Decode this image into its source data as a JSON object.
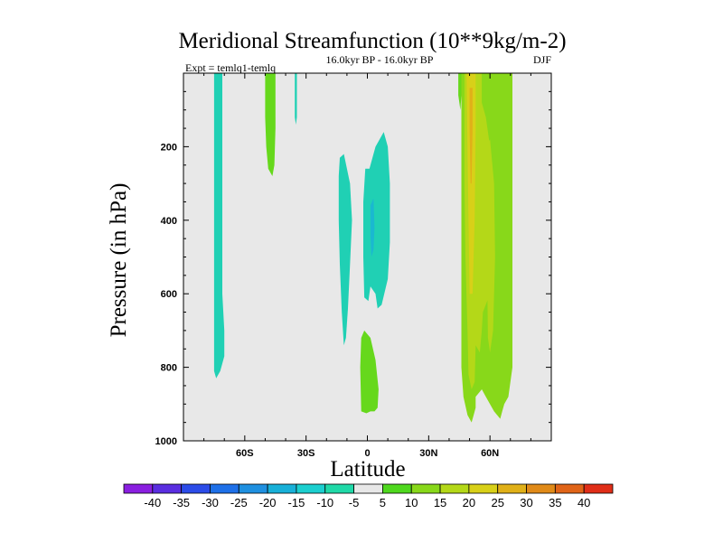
{
  "chart_data": {
    "type": "contour",
    "title": "Meridional Streamfunction (10**9kg/m-2)",
    "subtitle_left": "Expt = temlq1-temlq",
    "subtitle_center": "16.0kyr BP - 16.0kyr BP",
    "subtitle_right": "DJF",
    "xlabel": "Latitude",
    "ylabel": "Pressure (in hPa)",
    "xlim": [
      -90,
      90
    ],
    "ylim": [
      1000,
      0
    ],
    "xticks": [
      {
        "value": -60,
        "label": "60S"
      },
      {
        "value": -30,
        "label": "30S"
      },
      {
        "value": 0,
        "label": "0"
      },
      {
        "value": 30,
        "label": "30N"
      },
      {
        "value": 60,
        "label": "60N"
      }
    ],
    "yticks": [
      {
        "value": 200,
        "label": "200"
      },
      {
        "value": 400,
        "label": "400"
      },
      {
        "value": 600,
        "label": "600"
      },
      {
        "value": 800,
        "label": "800"
      },
      {
        "value": 1000,
        "label": "1000"
      }
    ],
    "background_color": "#e8e8e8",
    "colorbar": {
      "levels": [
        "-40",
        "-35",
        "-30",
        "-25",
        "-20",
        "-15",
        "-10",
        "-5",
        "5",
        "10",
        "15",
        "20",
        "25",
        "30",
        "35",
        "40"
      ],
      "colors": [
        "#8a1fe0",
        "#5a2ee0",
        "#2c4ce8",
        "#1e70e8",
        "#1f90e0",
        "#18b0d8",
        "#1ccfcf",
        "#20d9a8",
        "#e8e8e8",
        "#4fd81e",
        "#88d81a",
        "#b4d818",
        "#d8d018",
        "#e0b018",
        "#e08a18",
        "#e06418",
        "#e02e18"
      ]
    },
    "regions": [
      {
        "name": "sh-high-lat-negative",
        "level": "-5 to -10",
        "color": "#20d0b4",
        "outline": [
          [
            -75,
            0
          ],
          [
            -71,
            0
          ],
          [
            -71,
            600
          ],
          [
            -70,
            700
          ],
          [
            -70,
            770
          ],
          [
            -72,
            810
          ],
          [
            -74,
            830
          ],
          [
            -75,
            810
          ],
          [
            -75,
            600
          ]
        ]
      },
      {
        "name": "sh-midlat-positive-upper",
        "level": "5 to 10",
        "color": "#66d81c",
        "outline": [
          [
            -50,
            0
          ],
          [
            -45,
            0
          ],
          [
            -45,
            150
          ],
          [
            -45.5,
            250
          ],
          [
            -46.5,
            280
          ],
          [
            -48.5,
            260
          ],
          [
            -49.5,
            200
          ],
          [
            -50,
            120
          ]
        ]
      },
      {
        "name": "sh-thin-negative-upper",
        "level": "-5 to -10",
        "color": "#20d0b4",
        "outline": [
          [
            -35.5,
            0
          ],
          [
            -34.5,
            0
          ],
          [
            -34.5,
            120
          ],
          [
            -35,
            140
          ],
          [
            -35.5,
            120
          ]
        ]
      },
      {
        "name": "subtropic-negative",
        "level": "-5 to -10",
        "color": "#20d0b4",
        "outline": [
          [
            -13.5,
            230
          ],
          [
            -11.5,
            220
          ],
          [
            -8.5,
            300
          ],
          [
            -7.5,
            400
          ],
          [
            -8.5,
            520
          ],
          [
            -9.5,
            640
          ],
          [
            -10.5,
            720
          ],
          [
            -11.5,
            740
          ],
          [
            -12.5,
            650
          ],
          [
            -13.5,
            520
          ],
          [
            -14,
            400
          ],
          [
            -14,
            280
          ]
        ]
      },
      {
        "name": "equatorial-negative",
        "level": "-5 to -10",
        "color": "#20d0b4",
        "outline": [
          [
            -1,
            260
          ],
          [
            1,
            260
          ],
          [
            4,
            200
          ],
          [
            8,
            160
          ],
          [
            10,
            200
          ],
          [
            11,
            300
          ],
          [
            11,
            460
          ],
          [
            10,
            560
          ],
          [
            7,
            630
          ],
          [
            5,
            640
          ],
          [
            4,
            600
          ],
          [
            1.5,
            580
          ],
          [
            0.5,
            620
          ],
          [
            -1.5,
            610
          ],
          [
            -2,
            500
          ],
          [
            -2,
            350
          ]
        ]
      },
      {
        "name": "equatorial-negative-core",
        "level": "-10 to -15",
        "color": "#1ab8d0",
        "outline": [
          [
            1.5,
            360
          ],
          [
            3,
            340
          ],
          [
            3.5,
            420
          ],
          [
            3,
            480
          ],
          [
            2,
            500
          ],
          [
            1.5,
            440
          ]
        ]
      },
      {
        "name": "equatorial-positive-lower",
        "level": "5 to 10",
        "color": "#66d81c",
        "outline": [
          [
            -3,
            720
          ],
          [
            -1.5,
            700
          ],
          [
            1.5,
            720
          ],
          [
            4,
            780
          ],
          [
            5.5,
            860
          ],
          [
            5,
            910
          ],
          [
            3.5,
            920
          ],
          [
            1.5,
            920
          ],
          [
            -0.5,
            925
          ],
          [
            -3,
            920
          ],
          [
            -3.5,
            800
          ]
        ]
      },
      {
        "name": "nh-positive-outer",
        "level": "10 to 15",
        "color": "#88d81a",
        "outline": [
          [
            46,
            0
          ],
          [
            71,
            0
          ],
          [
            71,
            800
          ],
          [
            69,
            880
          ],
          [
            67,
            900
          ],
          [
            66,
            920
          ],
          [
            65,
            940
          ],
          [
            62,
            920
          ],
          [
            58,
            880
          ],
          [
            56,
            860
          ],
          [
            53,
            880
          ],
          [
            53,
            910
          ],
          [
            52,
            930
          ],
          [
            51,
            950
          ],
          [
            49,
            930
          ],
          [
            47,
            880
          ],
          [
            46,
            800
          ]
        ]
      },
      {
        "name": "nh-positive-mid",
        "level": "15 to 20",
        "color": "#b4d818",
        "outline": [
          [
            47.5,
            0
          ],
          [
            56,
            0
          ],
          [
            56,
            80
          ],
          [
            58,
            120
          ],
          [
            60,
            200
          ],
          [
            61,
            400
          ],
          [
            60,
            600
          ],
          [
            56.5,
            650
          ],
          [
            56,
            700
          ],
          [
            55,
            760
          ],
          [
            53,
            740
          ],
          [
            52.5,
            840
          ],
          [
            51,
            860
          ],
          [
            49.5,
            820
          ],
          [
            49,
            700
          ],
          [
            48,
            500
          ],
          [
            47.5,
            300
          ]
        ]
      },
      {
        "name": "nh-positive-inner",
        "level": "20 to 25",
        "color": "#d8d018",
        "outline": [
          [
            48.5,
            0
          ],
          [
            53,
            0
          ],
          [
            53,
            150
          ],
          [
            52.5,
            400
          ],
          [
            51.5,
            600
          ],
          [
            50,
            600
          ],
          [
            49.5,
            400
          ],
          [
            49,
            200
          ]
        ]
      },
      {
        "name": "nh-positive-core",
        "level": "25 to 30",
        "color": "#e0b018",
        "outline": [
          [
            50,
            40
          ],
          [
            51.5,
            40
          ],
          [
            51.5,
            150
          ],
          [
            51,
            300
          ],
          [
            50.5,
            300
          ],
          [
            50,
            150
          ]
        ]
      },
      {
        "name": "nh-positive-mid-right",
        "level": "15 to 20",
        "color": "#b4d818",
        "outline": [
          [
            58,
            200
          ],
          [
            60,
            180
          ],
          [
            62,
            300
          ],
          [
            62.5,
            500
          ],
          [
            61.5,
            700
          ],
          [
            60,
            760
          ],
          [
            59,
            720
          ],
          [
            58.5,
            500
          ]
        ]
      },
      {
        "name": "nh-thin-positive-upper",
        "level": "5 to 10",
        "color": "#66d81c",
        "outline": [
          [
            44.5,
            0
          ],
          [
            46,
            0
          ],
          [
            46,
            60
          ],
          [
            45.5,
            100
          ],
          [
            44.5,
            60
          ]
        ]
      }
    ]
  }
}
